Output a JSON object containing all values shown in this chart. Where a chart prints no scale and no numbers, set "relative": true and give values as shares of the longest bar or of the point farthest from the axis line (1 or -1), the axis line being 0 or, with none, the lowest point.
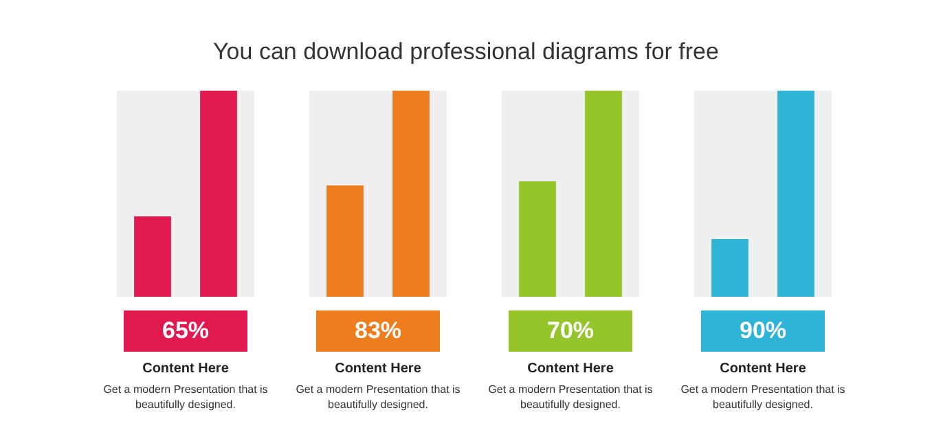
{
  "chart_data": [
    {
      "type": "other",
      "subtitle": "You can download professional diagrams for free"
    },
    {
      "type": "bar",
      "relative": true,
      "categories": [
        null,
        null
      ],
      "values": [
        0.39,
        1
      ],
      "colors": [
        "#e0194f",
        "#e0194f"
      ],
      "annotations": [
        "65%",
        "Content Here",
        "Get a modern Presentation that is beautifully designed."
      ]
    },
    {
      "type": "bar",
      "relative": true,
      "categories": [
        null,
        null
      ],
      "values": [
        0.54,
        1
      ],
      "colors": [
        "#ee7d1d",
        "#ee7d1d"
      ],
      "annotations": [
        "83%",
        "Content Here",
        "Get a modern Presentation that is beautifully designed."
      ]
    },
    {
      "type": "bar",
      "relative": true,
      "categories": [
        null,
        null
      ],
      "values": [
        0.56,
        1
      ],
      "colors": [
        "#95c52a",
        "#95c52a"
      ],
      "annotations": [
        "70%",
        "Content Here",
        "Get a modern Presentation that is beautifully designed."
      ]
    },
    {
      "type": "bar",
      "relative": true,
      "categories": [
        null,
        null
      ],
      "values": [
        0.28,
        1
      ],
      "colors": [
        "#2fb3d6",
        "#2fb3d6"
      ],
      "annotations": [
        "90%",
        "Content Here",
        "Get a modern Presentation that is beautifully designed."
      ]
    }
  ]
}
